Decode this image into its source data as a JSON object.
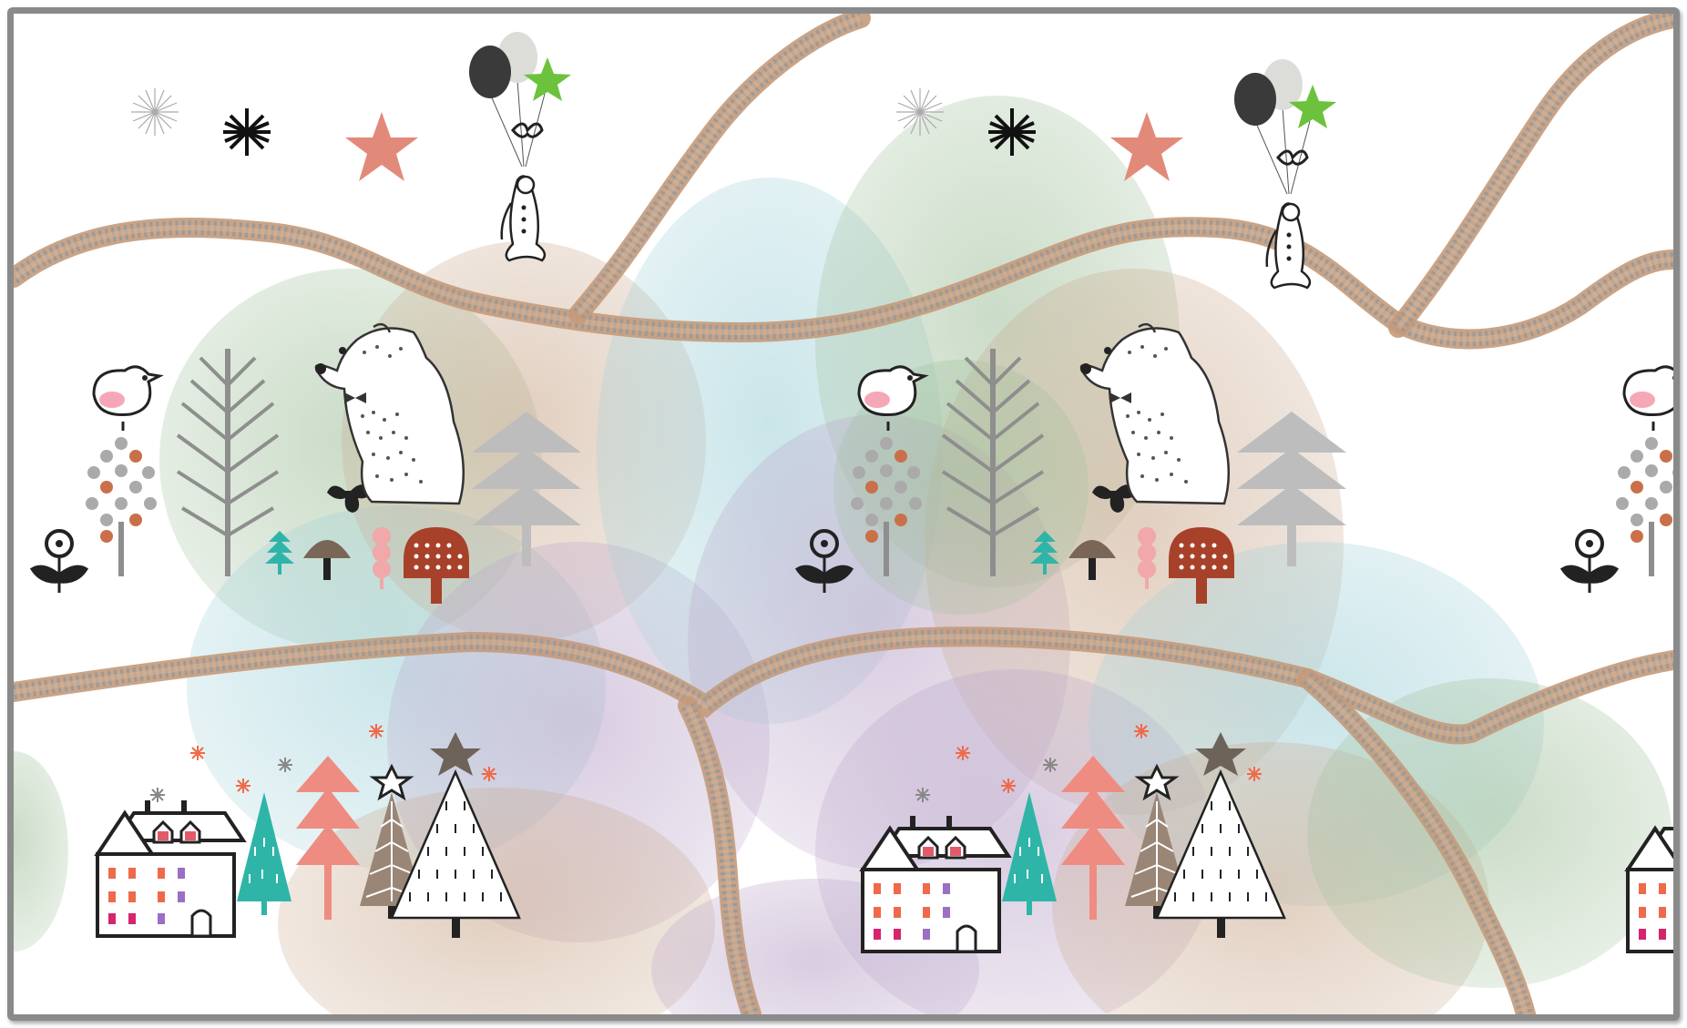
{
  "illustration": {
    "palette": {
      "background": "#ffffff",
      "frame": "#8a8a8a",
      "track": "#c49a7a",
      "tie": "#9a9a9a",
      "green_bubble": "#9fbf9a",
      "blue_bubble": "#9fd0d8",
      "brown_bubble": "#c9a88c",
      "purple_bubble": "#b9a4c8",
      "coral": "#e28a7a",
      "teal": "#2fb5a8",
      "rust": "#a8412a",
      "grey": "#8e8e8e",
      "dark": "#222222",
      "green_star": "#6cc23c",
      "mushroom": "#7a6656"
    },
    "icons": [
      "railway-track-icon",
      "balloon-icon",
      "star-icon",
      "sparkle-icon",
      "penguin-icon",
      "bird-icon",
      "bear-icon",
      "tree-icon",
      "mushroom-icon",
      "flower-icon",
      "house-icon",
      "christmas-tree-icon",
      "snowflake-icon"
    ]
  }
}
